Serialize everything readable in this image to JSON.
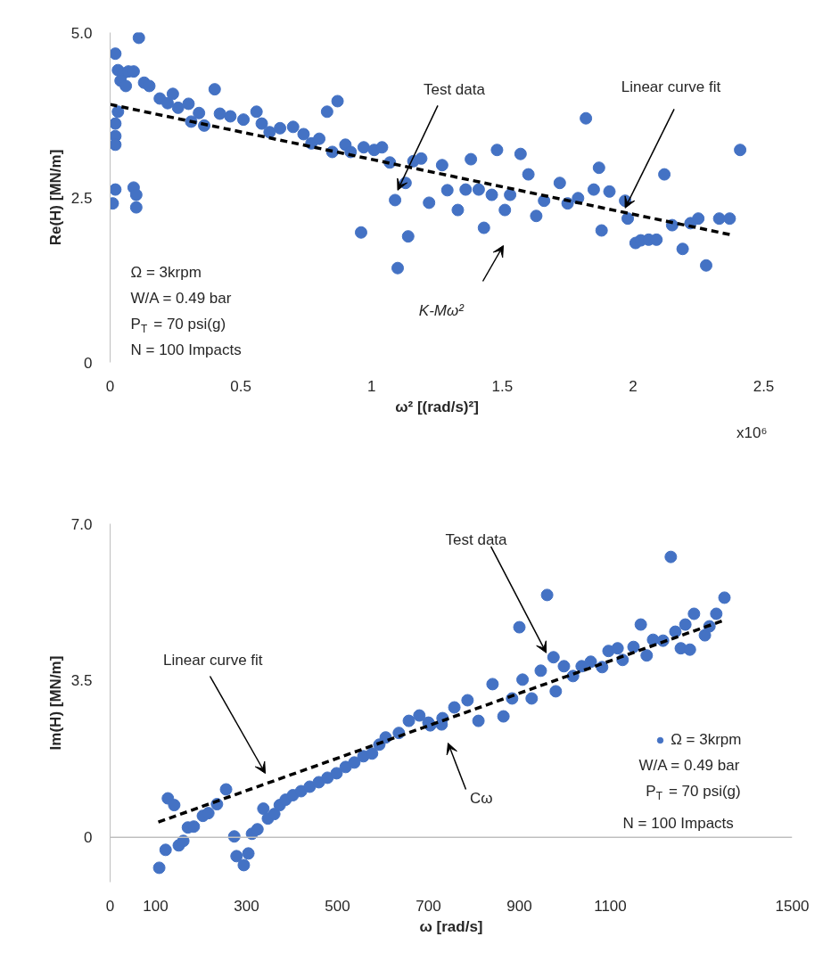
{
  "chart_data": [
    {
      "type": "scatter",
      "xlabel": "ω² [(rad/s)²]",
      "ylabel": "Re(H) [MN/m]",
      "xlim": [
        0,
        2.5
      ],
      "ylim": [
        0,
        5
      ],
      "xticks": [
        0,
        0.5,
        1,
        1.5,
        2,
        2.5
      ],
      "yticks": [
        0,
        2.5,
        {
          "value": 5,
          "label": "5.0"
        }
      ],
      "series": [
        {
          "type": "scatter",
          "marker": "circle",
          "color": "#4472c4",
          "x": [
            0.02,
            0.11,
            0.03,
            0.05,
            0.07,
            0.09,
            0.04,
            0.06,
            0.13,
            0.15,
            0.19,
            0.22,
            0.24,
            0.26,
            0.3,
            0.34,
            0.4,
            0.31,
            0.36,
            0.42,
            0.46,
            0.51,
            0.56,
            0.58,
            0.61,
            0.65,
            0.7,
            0.74,
            0.77,
            0.83,
            0.87,
            0.8,
            0.85,
            0.9,
            0.92,
            0.97,
            1.01,
            1.04,
            1.07,
            0.03,
            0.02,
            0.02,
            0.02,
            0.02,
            0.01,
            0.09,
            0.1,
            0.1,
            1.09,
            1.13,
            1.16,
            1.19,
            0.96,
            1.1,
            1.14,
            1.22,
            1.27,
            1.29,
            1.33,
            1.36,
            1.38,
            1.41,
            1.43,
            1.46,
            1.48,
            1.51,
            1.53,
            1.57,
            1.6,
            1.63,
            1.66,
            1.72,
            1.75,
            1.79,
            1.85,
            1.82,
            1.87,
            1.91,
            1.88,
            1.97,
            1.98,
            2.01,
            2.03,
            2.06,
            2.09,
            2.12,
            2.15,
            2.19,
            2.22,
            2.25,
            2.28,
            2.33,
            2.37,
            2.41
          ],
          "values": [
            4.68,
            4.92,
            4.43,
            4.38,
            4.41,
            4.41,
            4.27,
            4.19,
            4.24,
            4.19,
            4.0,
            3.93,
            4.07,
            3.86,
            3.92,
            3.78,
            4.14,
            3.65,
            3.59,
            3.77,
            3.73,
            3.68,
            3.8,
            3.62,
            3.49,
            3.55,
            3.57,
            3.46,
            3.32,
            3.8,
            3.96,
            3.39,
            3.19,
            3.3,
            3.19,
            3.26,
            3.22,
            3.26,
            3.03,
            3.8,
            3.62,
            3.43,
            3.3,
            2.62,
            2.41,
            2.65,
            2.54,
            2.35,
            2.46,
            2.72,
            3.05,
            3.09,
            1.97,
            1.43,
            1.91,
            2.42,
            2.99,
            2.61,
            2.31,
            2.62,
            3.08,
            2.62,
            2.04,
            2.54,
            3.22,
            2.31,
            2.54,
            3.16,
            2.85,
            2.22,
            2.45,
            2.72,
            2.41,
            2.49,
            2.62,
            3.7,
            2.95,
            2.59,
            2.0,
            2.45,
            2.18,
            1.81,
            1.85,
            1.86,
            1.86,
            2.85,
            2.08,
            1.72,
            2.11,
            2.18,
            1.47,
            2.18,
            2.18,
            3.22
          ]
        },
        {
          "type": "line",
          "color": "#000000",
          "line_style": "dashed",
          "x": [
            0,
            2.38
          ],
          "values": [
            3.91,
            1.93
          ]
        }
      ],
      "annotations": [
        "Ω = 3krpm",
        "W/A = 0.49 bar",
        "P$_{T}$ = 70 psi(g)",
        "N = 100 Impacts",
        "x10⁶",
        {
          "text": "Test data",
          "x": 1.1,
          "y": 2.61
        },
        {
          "text": "Linear curve fit",
          "x": 1.97,
          "y": 2.34
        },
        "K-Mω²"
      ]
    },
    {
      "type": "scatter",
      "xlabel": "ω [rad/s]",
      "ylabel": "Im(H) [MN/m]",
      "xlim": [
        0,
        1500
      ],
      "ylim": [
        -1,
        7
      ],
      "xticks": [
        0,
        100,
        300,
        500,
        700,
        900,
        1100,
        1500
      ],
      "yticks": [
        0,
        3.5,
        {
          "value": 7,
          "label": "7.0"
        }
      ],
      "legend": "bottom right",
      "ref_lines": [
        {
          "axis": "y",
          "value": 0,
          "color": "#bfbfbf"
        }
      ],
      "series": [
        {
          "type": "scatter",
          "marker": "circle",
          "name": "Ω = 3krpm",
          "color": "#4472c4",
          "x": [
            108,
            122,
            151,
            161,
            127,
            141,
            171,
            184,
            204,
            216,
            235,
            255,
            273,
            278,
            294,
            304,
            312,
            324,
            337,
            347,
            361,
            373,
            386,
            402,
            420,
            439,
            459,
            478,
            498,
            518,
            537,
            557,
            576,
            592,
            606,
            635,
            657,
            680,
            704,
            731,
            700,
            729,
            757,
            786,
            810,
            841,
            865,
            884,
            907,
            927,
            947,
            980,
            975,
            900,
            961,
            998,
            1018,
            1037,
            1057,
            1082,
            1096,
            1116,
            1127,
            1151,
            1167,
            1180,
            1194,
            1216,
            1243,
            1255,
            1275,
            1265,
            1284,
            1308,
            1318,
            1333,
            1351,
            1233
          ],
          "values": [
            -0.68,
            -0.28,
            -0.18,
            -0.08,
            0.87,
            0.72,
            0.22,
            0.24,
            0.48,
            0.54,
            0.74,
            1.07,
            0.02,
            -0.42,
            -0.62,
            -0.36,
            0.08,
            0.18,
            0.64,
            0.42,
            0.52,
            0.72,
            0.84,
            0.94,
            1.03,
            1.13,
            1.23,
            1.33,
            1.43,
            1.57,
            1.67,
            1.81,
            1.87,
            2.07,
            2.23,
            2.33,
            2.6,
            2.72,
            2.5,
            2.66,
            2.56,
            2.52,
            2.9,
            3.06,
            2.6,
            3.42,
            2.7,
            3.1,
            3.52,
            3.1,
            3.72,
            3.26,
            4.02,
            4.69,
            5.41,
            3.82,
            3.6,
            3.82,
            3.92,
            3.8,
            4.16,
            4.22,
            3.96,
            4.25,
            4.75,
            4.06,
            4.41,
            4.39,
            4.59,
            4.22,
            4.19,
            4.75,
            4.99,
            4.51,
            4.71,
            4.99,
            5.35,
            6.26
          ]
        },
        {
          "type": "line",
          "color": "#000000",
          "line_style": "dashed",
          "x": [
            106,
            1351
          ],
          "values": [
            0.34,
            4.85
          ]
        }
      ],
      "annotations": [
        "W/A = 0.49 bar",
        "P$_{T}$ = 70 psi(g)",
        "N = 100 Impacts",
        {
          "text": "Test data",
          "x": 959,
          "y": 4.12
        },
        "Linear curve fit",
        "Cω"
      ]
    }
  ]
}
